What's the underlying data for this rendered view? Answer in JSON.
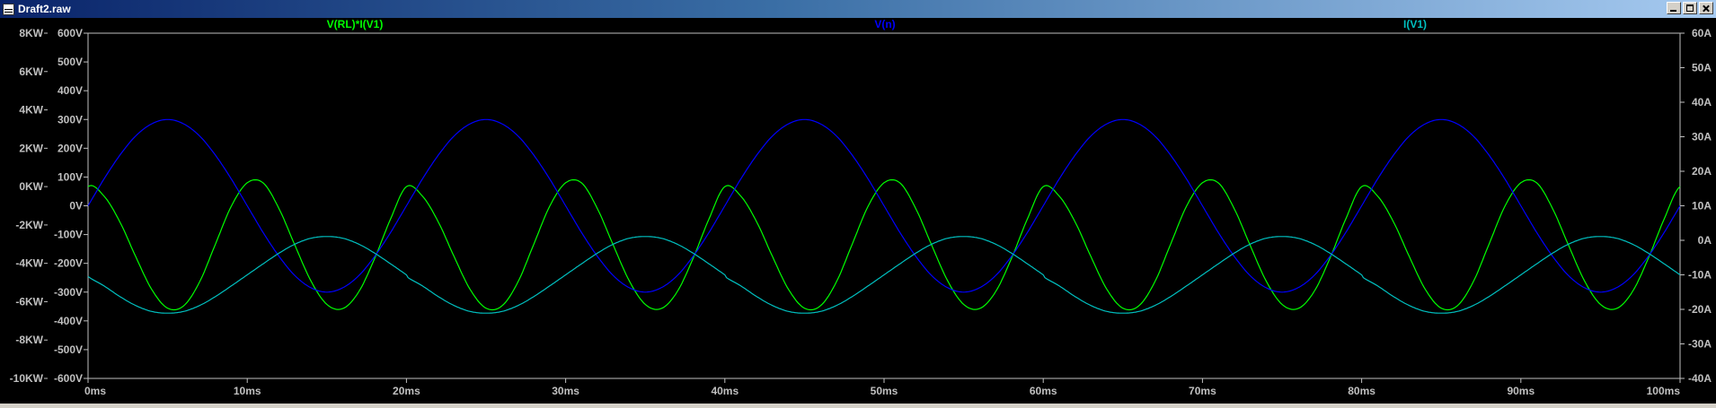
{
  "window": {
    "title": "Draft2.raw"
  },
  "chart_data": {
    "type": "line",
    "x_axis": {
      "range": [
        0,
        100
      ],
      "unit": "ms",
      "ticks": [
        0,
        10,
        20,
        30,
        40,
        50,
        60,
        70,
        80,
        90,
        100
      ],
      "tick_labels": [
        "0ms",
        "10ms",
        "20ms",
        "30ms",
        "40ms",
        "50ms",
        "60ms",
        "70ms",
        "80ms",
        "90ms",
        "100ms"
      ]
    },
    "y_axes": {
      "power": {
        "range": [
          -10000,
          8000
        ],
        "ticks": [
          8000,
          6000,
          4000,
          2000,
          0,
          -2000,
          -4000,
          -6000,
          -8000,
          -10000
        ],
        "tick_labels": [
          "8KW",
          "6KW",
          "4KW",
          "2KW",
          "0KW",
          "-2KW",
          "-4KW",
          "-6KW",
          "-8KW",
          "-10KW"
        ]
      },
      "voltage": {
        "range": [
          -600,
          600
        ],
        "ticks": [
          600,
          500,
          400,
          300,
          200,
          100,
          0,
          -100,
          -200,
          -300,
          -400,
          -500,
          -600
        ],
        "tick_labels": [
          "600V",
          "500V",
          "400V",
          "300V",
          "200V",
          "100V",
          "0V",
          "-100V",
          "-200V",
          "-300V",
          "-400V",
          "-500V",
          "-600V"
        ]
      },
      "current": {
        "range": [
          -40,
          60
        ],
        "ticks": [
          60,
          50,
          40,
          30,
          20,
          10,
          0,
          -10,
          -20,
          -30,
          -40
        ],
        "tick_labels": [
          "60A",
          "50A",
          "40A",
          "30A",
          "20A",
          "10A",
          "0A",
          "-10A",
          "-20A",
          "-30A",
          "-40A"
        ]
      }
    },
    "series": [
      {
        "name": "V(RL)*I(V1)",
        "axis": "power",
        "color": "#00ff00",
        "x": [
          0,
          1,
          2,
          3,
          4,
          5,
          6,
          7,
          8,
          9,
          10,
          11,
          12,
          13,
          14,
          15,
          16,
          17,
          18,
          19,
          20
        ],
        "y": [
          0,
          -490,
          -1840,
          -3660,
          -5360,
          -6340,
          -6220,
          -4980,
          -3000,
          -1020,
          200,
          190,
          -1160,
          -3070,
          -4920,
          -6140,
          -6360,
          -5490,
          -3750,
          -1690,
          0
        ],
        "repeat_period_ms": 20
      },
      {
        "name": "V(n)",
        "axis": "voltage",
        "color": "#0000ff",
        "x": [
          0,
          1,
          2,
          3,
          4,
          5,
          6,
          7,
          8,
          9,
          10,
          11,
          12,
          13,
          14,
          15,
          16,
          17,
          18,
          19,
          20
        ],
        "y": [
          0,
          93,
          176,
          243,
          285,
          300,
          285,
          243,
          176,
          93,
          0,
          -93,
          -176,
          -243,
          -285,
          -300,
          -285,
          -243,
          -176,
          -93,
          0
        ],
        "repeat_period_ms": 20
      },
      {
        "name": "I(V1)",
        "axis": "current",
        "color": "#00c0c0",
        "x": [
          0,
          1,
          2,
          3,
          4,
          5,
          6,
          7,
          8,
          9,
          10,
          11,
          12,
          13,
          14,
          15,
          16,
          17,
          18,
          19,
          20
        ],
        "y": [
          -10.5,
          -13.2,
          -16.3,
          -18.9,
          -20.6,
          -21.1,
          -20.6,
          -18.9,
          -16.3,
          -13.2,
          -10.0,
          -6.8,
          -3.7,
          -1.1,
          0.6,
          1.1,
          0.6,
          -1.1,
          -3.7,
          -6.8,
          -10.0
        ],
        "repeat_period_ms": 20
      }
    ],
    "grid": false
  }
}
